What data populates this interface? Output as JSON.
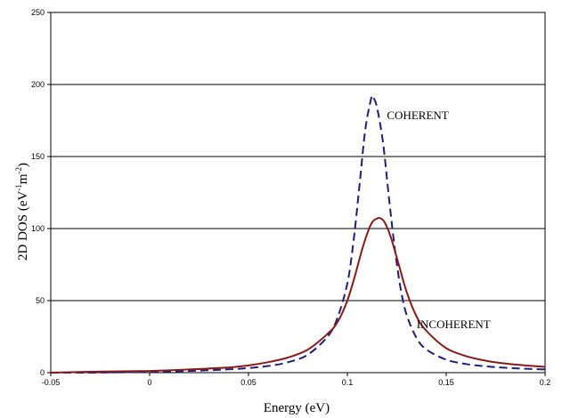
{
  "chart_data": {
    "type": "line",
    "xlabel": "Energy (eV)",
    "ylabel_main": "2D DOS (eV",
    "ylabel_sup1": "-1",
    "ylabel_mid": "m",
    "ylabel_sup2": "-2",
    "ylabel_end": ")",
    "xlim": [
      -0.05,
      0.2
    ],
    "ylim": [
      0,
      250
    ],
    "x_ticks": [
      -0.05,
      0,
      0.05,
      0.1,
      0.15,
      0.2
    ],
    "x_tick_labels": [
      "-0.05",
      "0",
      "0.05",
      "0.1",
      "0.15",
      "0.2"
    ],
    "y_ticks": [
      0,
      50,
      100,
      150,
      200,
      250
    ],
    "y_tick_labels": [
      "0",
      "50",
      "100",
      "150",
      "200",
      "250"
    ],
    "grid": "horizontal",
    "annotations": [
      {
        "text": "COHERENT",
        "x": 0.12,
        "y": 176
      },
      {
        "text": "INCOHERENT",
        "x": 0.135,
        "y": 31
      }
    ],
    "series": [
      {
        "color": "#1f1f7a",
        "dash": "dashed",
        "x": [
          -0.05,
          -0.03,
          -0.01,
          0.0,
          0.02,
          0.04,
          0.05,
          0.06,
          0.07,
          0.08,
          0.09,
          0.095,
          0.1,
          0.103,
          0.106,
          0.109,
          0.112,
          0.113,
          0.115,
          0.118,
          0.121,
          0.124,
          0.127,
          0.13,
          0.135,
          0.14,
          0.15,
          0.16,
          0.17,
          0.18,
          0.19,
          0.2
        ],
        "y": [
          0,
          0,
          0.3,
          0.5,
          1.2,
          2.3,
          3.2,
          4.6,
          7.2,
          12.5,
          25,
          38,
          62,
          90,
          128,
          168,
          190,
          191,
          184,
          160,
          122,
          86,
          58,
          40,
          24,
          16,
          9,
          6,
          4.4,
          3.4,
          2.7,
          2.2
        ]
      },
      {
        "color": "#8b1a1a",
        "dash": "solid",
        "x": [
          -0.05,
          -0.03,
          -0.01,
          0.0,
          0.02,
          0.04,
          0.05,
          0.06,
          0.07,
          0.08,
          0.09,
          0.095,
          0.1,
          0.104,
          0.108,
          0.112,
          0.115,
          0.117,
          0.119,
          0.122,
          0.126,
          0.13,
          0.135,
          0.14,
          0.15,
          0.16,
          0.17,
          0.18,
          0.19,
          0.2
        ],
        "y": [
          0,
          0.6,
          1,
          1.2,
          2.2,
          3.6,
          5,
          7.3,
          10.5,
          16,
          27,
          35,
          50,
          68,
          88,
          103,
          107,
          107,
          104,
          94,
          75,
          56,
          39,
          29,
          17,
          11.5,
          8.3,
          6.3,
          5,
          4
        ]
      }
    ]
  }
}
